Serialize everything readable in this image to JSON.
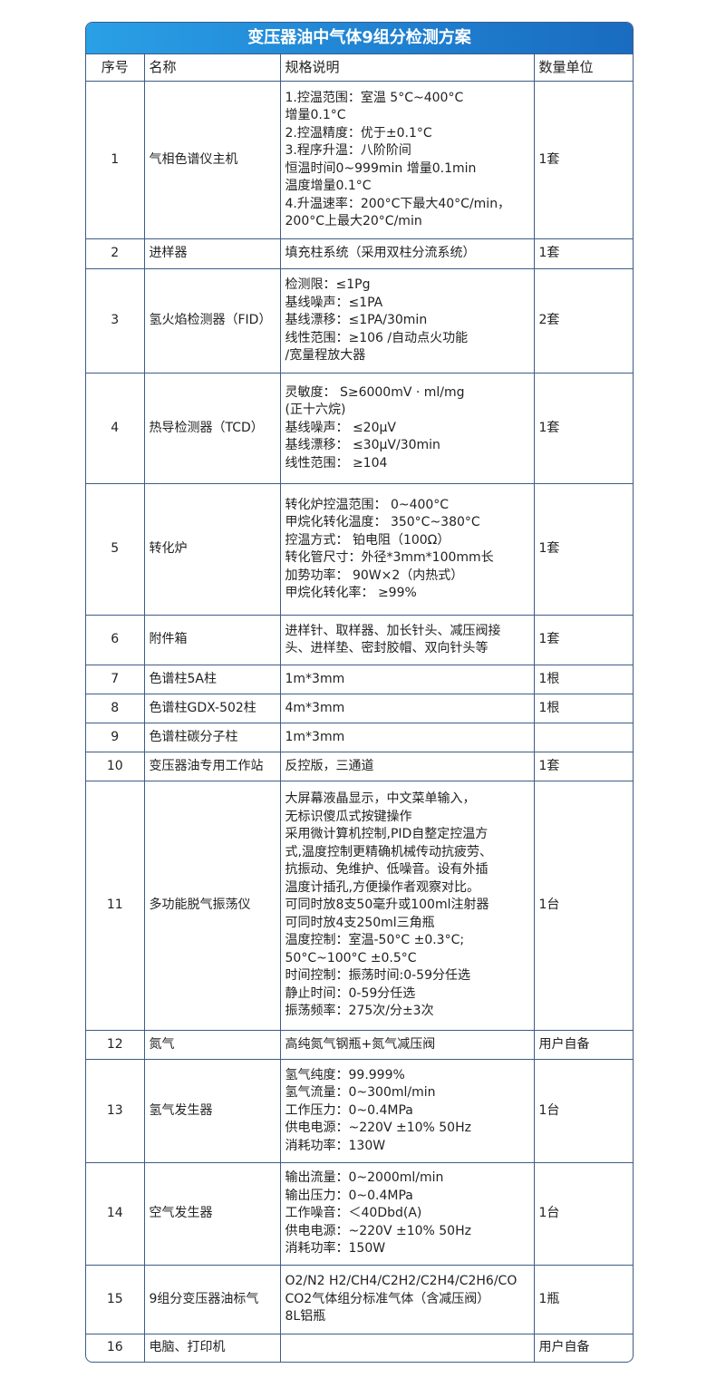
{
  "title": "变压器油中气体9组分检测方案",
  "headers": [
    "序号",
    "名称",
    "规格说明",
    "数量单位"
  ],
  "rows": [
    {
      "no": "1",
      "name": "气相色谱仪主机",
      "spec": "1.控温范围：室温 5°C~400°C\n增量0.1°C\n2.控温精度：优于±0.1°C\n3.程序升温：八阶阶间\n恒温时间0~999min 增量0.1min\n温度增量0.1°C\n4.升温速率：200°C下最大40°C/min，\n200°C上最大20°C/min",
      "qty": "1套"
    },
    {
      "no": "2",
      "name": "进样器",
      "spec": "填充柱系统（采用双柱分流系统）",
      "qty": "1套"
    },
    {
      "no": "3",
      "name": "氢火焰检测器（FID）",
      "spec": "检测限：≤1Pg\n基线噪声：≤1PA\n基线漂移：≤1PA/30min\n线性范围：≥106 /自动点火功能\n/宽量程放大器",
      "qty": "2套"
    },
    {
      "no": "4",
      "name": "热导检测器（TCD）",
      "spec": "灵敏度： S≥6000mV · ml/mg\n(正十六烷)\n基线噪声： ≤20μV\n基线漂移： ≤30μV/30min\n线性范围： ≥104",
      "qty": "1套"
    },
    {
      "no": "5",
      "name": "转化炉",
      "spec": "转化炉控温范围： 0~400°C\n甲烷化转化温度： 350°C~380°C\n控温方式： 铂电阻（100Ω）\n转化管尺寸：外径*3mm*100mm长\n加势功率： 90W×2（内热式）\n甲烷化转化率： ≥99%",
      "qty": "1套"
    },
    {
      "no": "6",
      "name": "附件箱",
      "spec": "进样针、取样器、加长针头、减压阀接\n头、进样垫、密封胶帽、双向针头等",
      "qty": "1套"
    },
    {
      "no": "7",
      "name": "色谱柱5A柱",
      "spec": "1m*3mm",
      "qty": "1根"
    },
    {
      "no": "8",
      "name": "色谱柱GDX-502柱",
      "spec": "4m*3mm",
      "qty": "1根"
    },
    {
      "no": "9",
      "name": "色谱柱碳分子柱",
      "spec": "1m*3mm",
      "qty": ""
    },
    {
      "no": "10",
      "name": "变压器油专用工作站",
      "spec": "反控版，三通道",
      "qty": "1套"
    },
    {
      "no": "11",
      "name": "多功能脱气振荡仪",
      "spec": "大屏幕液晶显示，中文菜单输入，\n无标识傻瓜式按键操作\n采用微计算机控制,PID自整定控温方\n式,温度控制更精确机械传动抗疲劳、\n抗振动、免维护、低噪音。设有外插\n温度计插孔,方便操作者观察对比。\n可同时放8支50毫升或100ml注射器\n可同时放4支250ml三角瓶\n温度控制：室温-50°C ±0.3°C;\n 50°C~100°C ±0.5°C\n时间控制：振荡时间:0-59分任选\n静止时间：0-59分任选\n振荡频率：275次/分±3次",
      "qty": "1台"
    },
    {
      "no": "12",
      "name": "氮气",
      "spec": "高纯氮气钢瓶+氮气减压阀",
      "qty": "用户自备"
    },
    {
      "no": "13",
      "name": "氢气发生器",
      "spec": "氢气纯度：99.999%\n氢气流量：0~300ml/min\n工作压力：0~0.4MPa\n供电电源：~220V ±10% 50Hz\n消耗功率：130W",
      "qty": "1台"
    },
    {
      "no": "14",
      "name": "空气发生器",
      "spec": "输出流量：0~2000ml/min\n输出压力：0~0.4MPa\n工作噪音：＜40Dbd(A)\n供电电源：~220V ±10% 50Hz\n消耗功率：150W",
      "qty": "1台"
    },
    {
      "no": "15",
      "name": "9组分变压器油标气",
      "spec": "O2/N2 H2/CH4/C2H2/C2H4/C2H6/CO\nCO2气体组分标准气体（含减压阀）\n8L铝瓶",
      "qty": "1瓶"
    },
    {
      "no": "16",
      "name": "电脑、打印机",
      "spec": "",
      "qty": "用户自备"
    }
  ]
}
